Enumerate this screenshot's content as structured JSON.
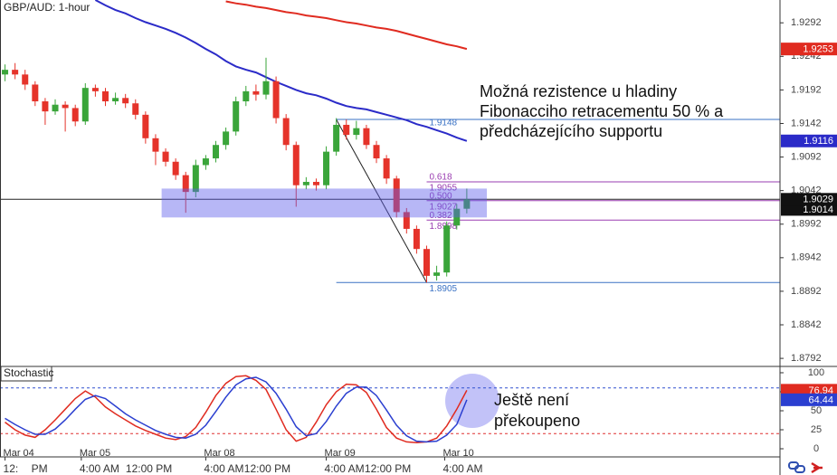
{
  "chart_data": [
    {
      "type": "candlestick",
      "title": "GBP/AUD: 1-hour",
      "xlim": [
        -0.5,
        77.2
      ],
      "ylim": [
        1.878,
        1.9326
      ],
      "yticks": [
        1.9292,
        1.9242,
        1.9192,
        1.9142,
        1.9092,
        1.9042,
        1.8992,
        1.8942,
        1.8892,
        1.8842,
        1.8792
      ],
      "up_color": "#3aa53a",
      "down_color": "#e5332a",
      "open": [
        1.9215,
        1.9222,
        1.9215,
        1.92,
        1.9175,
        1.916,
        1.917,
        1.9165,
        1.9145,
        1.9195,
        1.919,
        1.9175,
        1.918,
        1.9172,
        1.9155,
        1.912,
        1.91,
        1.9085,
        1.9065,
        1.904,
        1.908,
        1.909,
        1.911,
        1.913,
        1.9175,
        1.919,
        1.9185,
        1.9205,
        1.915,
        1.911,
        1.905,
        1.9055,
        1.905,
        1.91,
        1.914,
        1.9125,
        1.9135,
        1.911,
        1.909,
        1.906,
        1.901,
        1.8985,
        1.8955,
        1.8915,
        1.892,
        1.899,
        1.9015
      ],
      "high": [
        1.923,
        1.9232,
        1.9222,
        1.9205,
        1.918,
        1.9178,
        1.9175,
        1.917,
        1.9202,
        1.92,
        1.9195,
        1.9188,
        1.9186,
        1.9178,
        1.916,
        1.9126,
        1.9105,
        1.909,
        1.907,
        1.9088,
        1.9095,
        1.9116,
        1.9136,
        1.9182,
        1.9198,
        1.92,
        1.924,
        1.9212,
        1.9156,
        1.9115,
        1.9062,
        1.906,
        1.9108,
        1.915,
        1.9148,
        1.9146,
        1.914,
        1.9116,
        1.9095,
        1.9064,
        1.9016,
        1.899,
        1.896,
        1.893,
        1.8996,
        1.9022,
        1.9045
      ],
      "low": [
        1.9205,
        1.9208,
        1.9192,
        1.9168,
        1.914,
        1.9155,
        1.913,
        1.9138,
        1.914,
        1.9182,
        1.9168,
        1.917,
        1.9165,
        1.9148,
        1.9112,
        1.908,
        1.9078,
        1.9058,
        1.9009,
        1.9032,
        1.9073,
        1.9084,
        1.9103,
        1.9124,
        1.9168,
        1.9176,
        1.9178,
        1.9142,
        1.9102,
        1.9018,
        1.9044,
        1.9042,
        1.9044,
        1.9094,
        1.9118,
        1.9118,
        1.9104,
        1.9083,
        1.9052,
        1.9002,
        1.8978,
        1.8948,
        1.8905,
        1.8908,
        1.8914,
        1.8984,
        1.9008
      ],
      "close": [
        1.9222,
        1.9215,
        1.92,
        1.9175,
        1.916,
        1.917,
        1.9165,
        1.9145,
        1.9195,
        1.919,
        1.9175,
        1.918,
        1.9172,
        1.9155,
        1.912,
        1.91,
        1.9085,
        1.9065,
        1.904,
        1.908,
        1.909,
        1.911,
        1.913,
        1.9175,
        1.919,
        1.9185,
        1.9205,
        1.915,
        1.911,
        1.905,
        1.9055,
        1.905,
        1.91,
        1.914,
        1.9125,
        1.9135,
        1.911,
        1.909,
        1.906,
        1.901,
        1.8985,
        1.8955,
        1.8915,
        1.892,
        1.899,
        1.9015,
        1.9029
      ],
      "overlays": [
        {
          "color": "#2b2bc8",
          "values": [
            null,
            null,
            null,
            null,
            null,
            null,
            null,
            null,
            null,
            1.9326,
            1.9318,
            1.9311,
            1.9306,
            1.9299,
            1.9293,
            1.9288,
            1.9283,
            1.9277,
            1.927,
            1.9262,
            1.9253,
            1.9245,
            1.9235,
            1.9227,
            1.9222,
            1.9218,
            1.9211,
            1.9204,
            1.9198,
            1.9192,
            1.9187,
            1.9184,
            1.9179,
            1.9173,
            1.9168,
            1.9165,
            1.9163,
            1.9159,
            1.9155,
            1.9151,
            1.9147,
            1.9141,
            1.9137,
            1.9132,
            1.9127,
            1.9121,
            1.9116
          ]
        },
        {
          "color": "#e02b20",
          "values": [
            null,
            null,
            null,
            null,
            null,
            null,
            null,
            null,
            null,
            null,
            null,
            null,
            null,
            null,
            null,
            null,
            null,
            null,
            null,
            null,
            null,
            null,
            1.9324,
            1.9321,
            1.9319,
            1.9316,
            1.9314,
            1.9311,
            1.9308,
            1.9306,
            1.9303,
            1.9301,
            1.9299,
            1.9296,
            1.9293,
            1.9291,
            1.9288,
            1.9285,
            1.9283,
            1.928,
            1.9276,
            1.9272,
            1.9268,
            1.9264,
            1.926,
            1.9257,
            1.9253
          ]
        }
      ],
      "price_labels": [
        1.9014
      ],
      "zone": {
        "x": [
          15.6,
          48
        ],
        "y": [
          1.9002,
          1.9045
        ],
        "color": "rgba(95,95,235,0.45)"
      },
      "trendline": {
        "x": [
          33,
          42
        ],
        "values": [
          1.9148,
          1.8905
        ]
      },
      "fibonacci": {
        "start": 33,
        "low_index": 42,
        "high": 1.9148,
        "low": 1.8905,
        "color": "#9a3db0",
        "range_color": "#3a72c4",
        "levels": [
          {
            "ratio": 0.618,
            "price": 1.9055
          },
          {
            "ratio": {
              "value": 0.5,
              "label": "0.500"
            },
            "price": 1.9027
          },
          {
            "ratio": 0.382,
            "price": 1.8998
          }
        ]
      },
      "annotation": [
        "Možná rezistence u hladiny",
        "Fibonacciho retracementu 50 % a",
        "předcházejícího supportu"
      ]
    },
    {
      "type": "line",
      "title": "Stochastic",
      "xlim": [
        -0.5,
        77.2
      ],
      "ylim": [
        -10.7,
        108.3
      ],
      "yticks": [
        100,
        75,
        50,
        25,
        0
      ],
      "levels": [
        {
          "value": 80,
          "color": "#3050d0"
        },
        {
          "value": 20,
          "color": "#e03030"
        }
      ],
      "series": [
        {
          "color": "#e02b20",
          "values": [
            35,
            25,
            18,
            15,
            25,
            38,
            52,
            66,
            76,
            68,
            55,
            46,
            38,
            30,
            24,
            19,
            14,
            12,
            16,
            28,
            48,
            70,
            86,
            95,
            96,
            90,
            78,
            52,
            25,
            10,
            15,
            35,
            58,
            75,
            85,
            84,
            74,
            52,
            28,
            14,
            9,
            8,
            9,
            14,
            30,
            52,
            76.94
          ]
        },
        {
          "color": "#2b3fd0",
          "values": [
            40,
            32,
            25,
            19,
            19,
            26,
            38,
            52,
            65,
            70,
            66,
            56,
            46,
            38,
            31,
            24,
            19,
            15,
            14,
            19,
            31,
            49,
            68,
            84,
            92,
            94,
            88,
            73,
            52,
            29,
            17,
            20,
            36,
            56,
            73,
            81,
            81,
            70,
            51,
            31,
            17,
            10,
            9,
            10,
            18,
            32,
            64.44
          ]
        }
      ],
      "xticks": [
        {
          "value": 0,
          "label": "Mar 04"
        },
        {
          "value": 7.6,
          "label": "Mar 05"
        },
        {
          "value": 20,
          "label": "Mar 08"
        },
        {
          "value": 32,
          "label": "Mar 09"
        },
        {
          "value": 43.8,
          "label": "Mar 10"
        }
      ],
      "time_ticks": [
        {
          "value": 0,
          "label": "12:"
        },
        {
          "value": 2.8,
          "label": "PM"
        },
        {
          "value": 7.6,
          "label": "4:00 AM"
        },
        {
          "value": 12.2,
          "label": "12:00 PM"
        },
        {
          "value": 20,
          "label": "4:00 AM"
        },
        {
          "value": 24,
          "label": "12:00 PM"
        },
        {
          "value": 32,
          "label": "4:00 AM"
        },
        {
          "value": 36,
          "label": "12:00 PM"
        },
        {
          "value": 43.8,
          "label": "4:00 AM"
        }
      ],
      "annotation": [
        "Ještě není",
        "překoupeno"
      ]
    }
  ]
}
